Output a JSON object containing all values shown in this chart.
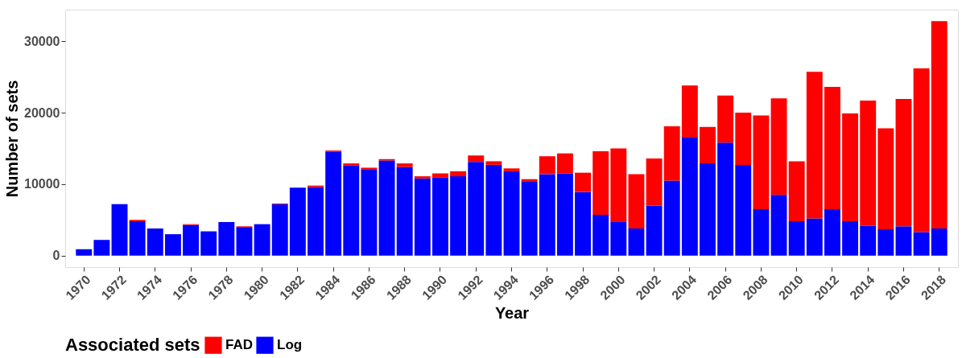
{
  "chart_data": {
    "type": "bar",
    "stacked": true,
    "xlabel": "Year",
    "ylabel": "Number of sets",
    "legend_title": "Associated sets",
    "legend": "bottom",
    "grid": false,
    "categories": [
      "1970",
      null,
      "1972",
      null,
      "1974",
      null,
      "1976",
      null,
      "1978",
      null,
      "1980",
      null,
      "1982",
      null,
      "1984",
      null,
      "1986",
      null,
      "1988",
      null,
      "1990",
      null,
      "1992",
      null,
      "1994",
      null,
      "1996",
      null,
      "1998",
      null,
      "2000",
      null,
      "2002",
      null,
      "2004",
      null,
      "2006",
      null,
      "2008",
      null,
      "2010",
      null,
      "2012",
      null,
      "2014",
      null,
      "2016",
      null,
      "2018"
    ],
    "ylim": [
      -1600,
      34400
    ],
    "yticks": [
      0,
      10000,
      20000,
      30000
    ],
    "series": [
      {
        "name": "Log",
        "color": "#0000ff",
        "values": [
          900,
          2200,
          7200,
          4800,
          3800,
          3000,
          4300,
          3400,
          4700,
          4000,
          4400,
          7200,
          9500,
          9600,
          14500,
          12600,
          12100,
          13300,
          12400,
          10800,
          10900,
          11100,
          13100,
          12700,
          11800,
          10400,
          11400,
          11500,
          8900,
          5700,
          4700,
          3800,
          7000,
          10500,
          16500,
          12900,
          15800,
          12700,
          6500,
          8500,
          4800,
          5200,
          6500,
          4800,
          4200,
          3700,
          4100,
          3300,
          3800
        ]
      },
      {
        "name": "FAD",
        "color": "#ff0000",
        "values": [
          null,
          null,
          null,
          200,
          null,
          null,
          100,
          null,
          null,
          100,
          null,
          100,
          null,
          200,
          200,
          300,
          200,
          200,
          500,
          300,
          600,
          700,
          900,
          500,
          400,
          300,
          2500,
          2800,
          2700,
          8900,
          10300,
          7600,
          6600,
          7600,
          7300,
          5100,
          6600,
          7300,
          13100,
          13500,
          8400,
          20500,
          17100,
          15100,
          17500,
          14100,
          17800,
          22900,
          29000
        ]
      }
    ]
  }
}
